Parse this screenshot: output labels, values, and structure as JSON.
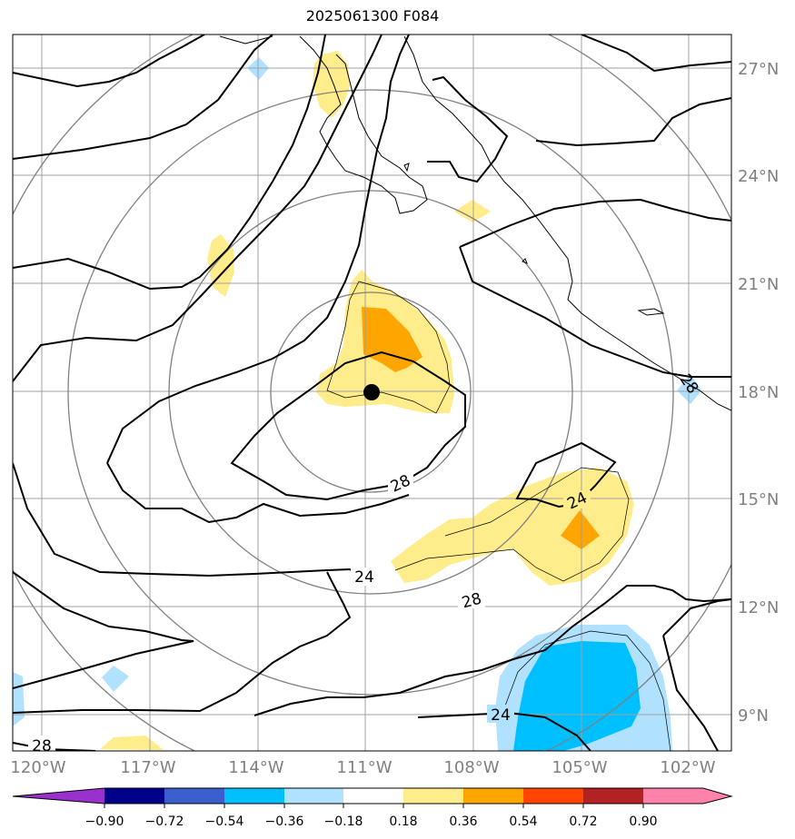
{
  "title": "2025061300 F084",
  "lon_labels": [
    "120°W",
    "117°W",
    "114°W",
    "111°W",
    "108°W",
    "105°W",
    "102°W"
  ],
  "lat_labels": [
    "27°N",
    "24°N",
    "21°N",
    "18°N",
    "15°N",
    "12°N",
    "9°N"
  ],
  "contour_labels": [
    "28",
    "24",
    "28",
    "24",
    "28",
    "24",
    "28"
  ],
  "colorbar": {
    "tick_labels": [
      "−0.90",
      "−0.72",
      "−0.54",
      "−0.36",
      "−0.18",
      "0.18",
      "0.36",
      "0.54",
      "0.72",
      "0.90"
    ],
    "colors": [
      "#9932cc",
      "#00008b",
      "#3a5fcd",
      "#00bfff",
      "#b0e2ff",
      "#ffffff",
      "#ffec8b",
      "#ffa500",
      "#ff4500",
      "#b22222",
      "#ff82ab"
    ]
  },
  "colors": {
    "positive_light": "#ffec8b",
    "positive_mid": "#ffa500",
    "negative_light": "#b0e2ff",
    "negative_mid": "#00bfff",
    "gridlines": "#a0a0a0",
    "range_rings": "#808080"
  },
  "storm_center_marker": "black-dot-icon"
}
